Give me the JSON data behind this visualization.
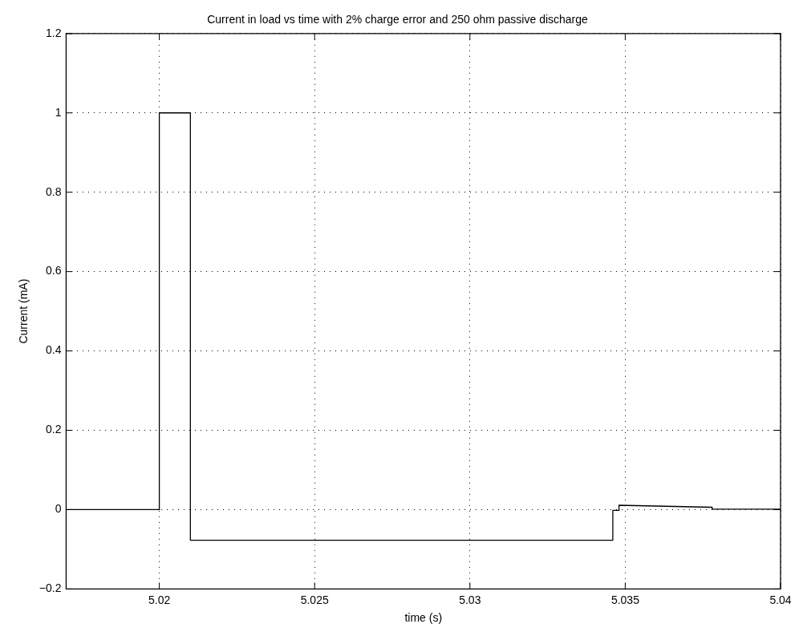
{
  "chart_data": {
    "type": "line",
    "title": "Current in load vs time with 2% charge error and 250 ohm passive discharge",
    "xlabel": "time (s)",
    "ylabel": "Current (mA)",
    "series": [
      {
        "color": "#000000",
        "x": [
          5.017,
          5.02,
          5.02,
          5.021,
          5.021,
          5.0346,
          5.0346,
          5.0348,
          5.0348,
          5.0378,
          5.0378,
          5.04
        ],
        "values": [
          0,
          0,
          1,
          1,
          -0.077,
          -0.077,
          -0.002,
          -0.002,
          0.011,
          0.006,
          0.001,
          0.001
        ]
      }
    ],
    "xlim": [
      5.017,
      5.04
    ],
    "xticks": [
      5.02,
      5.025,
      5.03,
      5.035,
      5.04
    ],
    "ylim": [
      -0.2,
      1.2
    ],
    "yticks": [
      -0.2,
      0,
      0.2,
      0.4,
      0.6,
      0.8,
      1,
      1.2
    ],
    "grid": true,
    "legend": false,
    "marker": "none",
    "line_style": "solid"
  }
}
